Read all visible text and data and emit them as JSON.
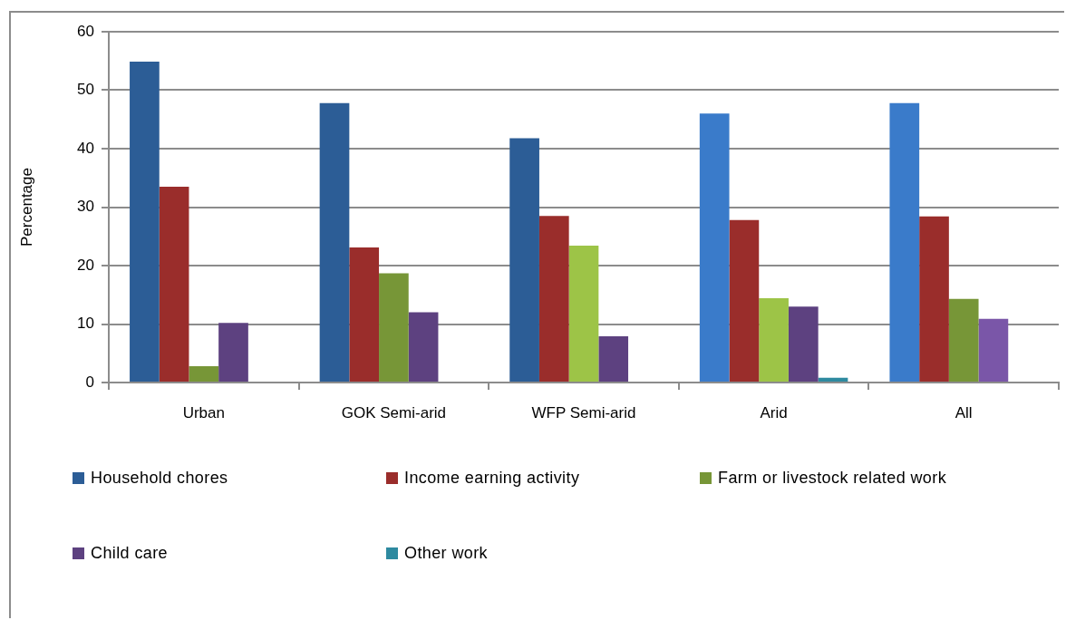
{
  "chart_data": {
    "type": "bar",
    "ylabel": "Percentage",
    "categories": [
      "Urban",
      "GOK Semi-arid",
      "WFP Semi-arid",
      "Arid",
      "All"
    ],
    "series": [
      {
        "name": "Household chores",
        "color": "#2c5d96",
        "colors": [
          "#2c5d96",
          "#2c5d96",
          "#2c5d96",
          "#3a7bca",
          "#3a7bca"
        ],
        "values": [
          54.9,
          47.8,
          41.8,
          46.0,
          47.8
        ]
      },
      {
        "name": "Income earning activity",
        "color": "#9a2d2b",
        "values": [
          33.5,
          23.1,
          28.5,
          27.8,
          28.4
        ]
      },
      {
        "name": "Farm or livestock related work",
        "color": "#779637",
        "colors": [
          "#779637",
          "#779637",
          "#9dc447",
          "#9dc447",
          "#779637"
        ],
        "values": [
          2.8,
          18.7,
          23.4,
          14.4,
          14.3
        ]
      },
      {
        "name": "Child care",
        "color": "#5d4180",
        "colors": [
          "#5d4180",
          "#5d4180",
          "#5d4180",
          "#5d4180",
          "#7a56a8"
        ],
        "values": [
          10.2,
          12.0,
          7.9,
          13.0,
          10.9
        ]
      },
      {
        "name": "Other work",
        "color": "#2e8aa0",
        "values": [
          null,
          null,
          null,
          0.8,
          null
        ]
      }
    ],
    "ylim": [
      0,
      60
    ],
    "yticks": [
      0,
      10,
      20,
      30,
      40,
      50,
      60
    ],
    "grid": "y",
    "legend": "bottom"
  }
}
